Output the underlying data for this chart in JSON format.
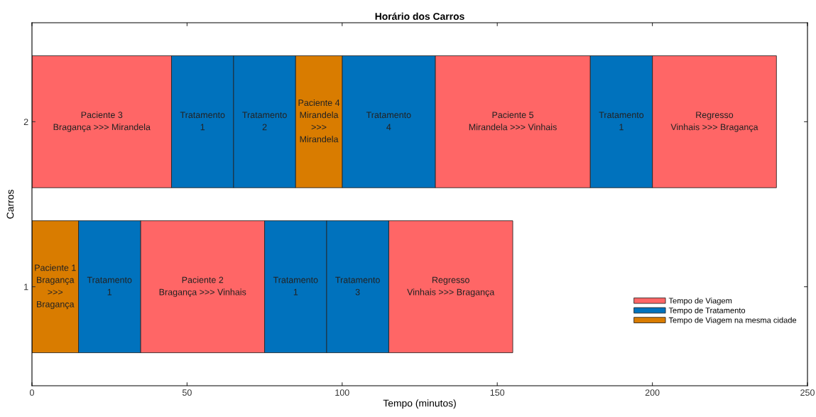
{
  "chart_data": {
    "type": "bar",
    "orientation": "horizontal",
    "title": "Horário dos Carros",
    "xlabel": "Tempo (minutos)",
    "ylabel": "Carros",
    "categories": [
      "2",
      "1"
    ],
    "series": [
      {
        "name": "Tempo de Viagem",
        "color": "#ff6666",
        "base": [
          0,
          35
        ],
        "values": [
          45,
          40
        ],
        "value_labels": [
          "Paciente 3\nBragança >>> Mirandela",
          "Paciente 2\nBragança >>> Vinhais"
        ]
      },
      {
        "color": "#ff6666",
        "base": [
          130,
          115
        ],
        "values": [
          50,
          40
        ],
        "value_labels": [
          "Paciente 5\nMirandela >>> Vinhais",
          "Regresso\nVinhais >>> Bragança"
        ]
      },
      {
        "color": "#ff6666",
        "base": [
          200,
          null
        ],
        "values": [
          40,
          null
        ],
        "value_labels": [
          "Regresso\nVinhais >>> Bragança",
          null
        ]
      },
      {
        "name": "Tempo de Tratamento",
        "color": "#0072bd",
        "base": [
          45,
          15
        ],
        "values": [
          20,
          20
        ],
        "value_labels": [
          "Tratamento\n1",
          "Tratamento\n1"
        ]
      },
      {
        "color": "#0072bd",
        "base": [
          65,
          75
        ],
        "values": [
          20,
          20
        ],
        "value_labels": [
          "Tratamento\n2",
          "Tratamento\n1"
        ]
      },
      {
        "color": "#0072bd",
        "base": [
          100,
          95
        ],
        "values": [
          30,
          20
        ],
        "value_labels": [
          "Tratamento\n4",
          "Tratamento\n3"
        ]
      },
      {
        "color": "#0072bd",
        "base": [
          180,
          null
        ],
        "values": [
          20,
          null
        ],
        "value_labels": [
          "Tratamento\n1",
          null
        ]
      },
      {
        "name": "Tempo de Viagem na mesma cidade",
        "color": "#d97c00",
        "base": [
          85,
          0
        ],
        "values": [
          15,
          15
        ],
        "value_labels": [
          "Paciente 4\nMirandela\n>>>\nMirandela",
          "Paciente 1\nBragança\n>>>\nBragança"
        ]
      }
    ],
    "xlim": [
      0,
      250
    ],
    "xticks": [
      0,
      50,
      100,
      150,
      200,
      250
    ],
    "legend": "bottom right",
    "grid": false
  }
}
